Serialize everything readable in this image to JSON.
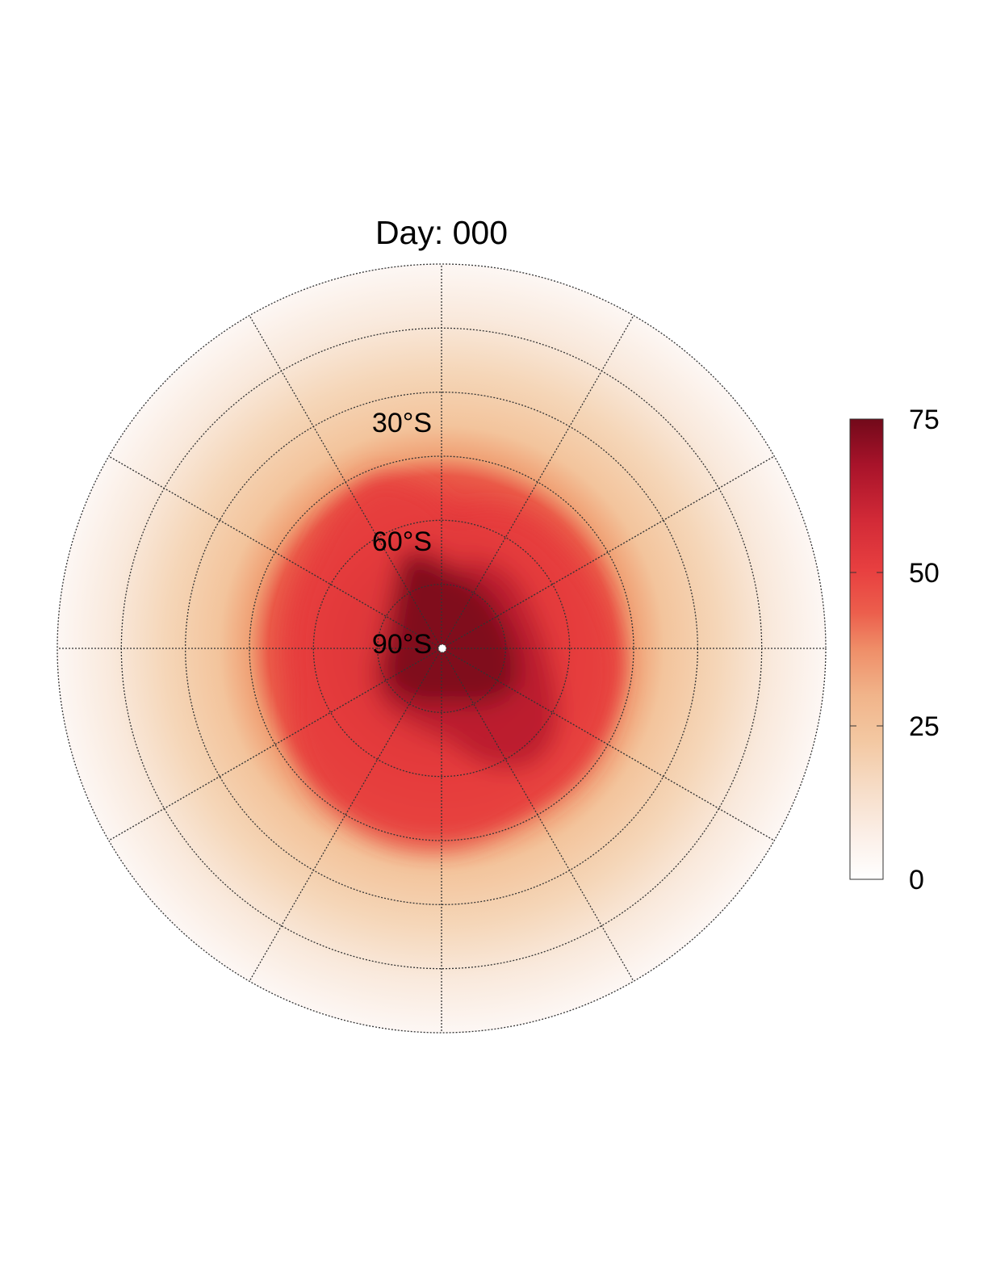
{
  "chart_data": {
    "type": "heatmap",
    "projection": "south-polar-stereographic",
    "title": "Day: 000",
    "latitude_labels": [
      "30°S",
      "60°S",
      "90°S"
    ],
    "latitude_circles": [
      -90,
      -75,
      -60,
      -45,
      -30,
      -15,
      0
    ],
    "longitude_spokes_deg": [
      0,
      30,
      60,
      90,
      120,
      150,
      180,
      210,
      240,
      270,
      300,
      330
    ],
    "grid": true,
    "colorbar": {
      "position": "right",
      "min": 0,
      "max": 75,
      "ticks": [
        0,
        25,
        50,
        75
      ],
      "tick_labels": [
        "0",
        "25",
        "50",
        "75"
      ],
      "colors": [
        "#ffffff",
        "#fbeee6",
        "#f6d8be",
        "#f3c59e",
        "#f0ac7c",
        "#ec6a52",
        "#e84242",
        "#d42a38",
        "#b0162c",
        "#880e22",
        "#6e0a18"
      ]
    },
    "field": {
      "description_values": "value vs latitude band",
      "zonal_mean_by_latitude": [
        {
          "lat": -90,
          "value": 72
        },
        {
          "lat": -75,
          "value": 62
        },
        {
          "lat": -60,
          "value": 50
        },
        {
          "lat": -45,
          "value": 35
        },
        {
          "lat": -30,
          "value": 24
        },
        {
          "lat": -15,
          "value": 15
        },
        {
          "lat": 0,
          "value": 3
        }
      ]
    }
  }
}
